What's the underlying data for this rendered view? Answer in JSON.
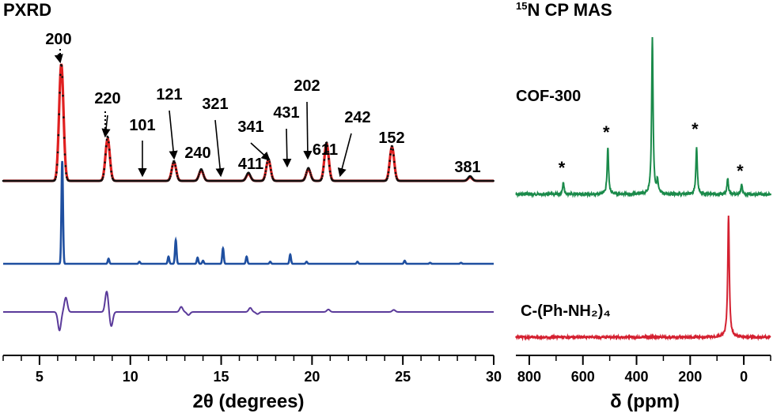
{
  "chart_data": [
    {
      "type": "line",
      "title": "PXRD",
      "xlabel": "2θ (degrees)",
      "xlim": [
        3,
        30
      ],
      "x_ticks": [
        5,
        10,
        15,
        20,
        25,
        30
      ],
      "x_tick_labels": [
        "5",
        "10",
        "15",
        "20",
        "25",
        "30"
      ],
      "y_ticks_shown": false,
      "series": [
        {
          "color": "#e02020",
          "style": "solid line",
          "peaks": [
            {
              "x": 6.2,
              "height": 1.0
            },
            {
              "x": 8.75,
              "height": 0.36
            },
            {
              "x": 12.4,
              "height": 0.16
            },
            {
              "x": 13.9,
              "height": 0.09
            },
            {
              "x": 16.5,
              "height": 0.06
            },
            {
              "x": 17.6,
              "height": 0.18
            },
            {
              "x": 19.8,
              "height": 0.1
            },
            {
              "x": 20.8,
              "height": 0.32
            },
            {
              "x": 24.4,
              "height": 0.29
            },
            {
              "x": 28.7,
              "height": 0.03
            }
          ]
        },
        {
          "color": "#111111",
          "style": "dotted markers",
          "peaks": [
            {
              "x": 6.2,
              "height": 1.0
            },
            {
              "x": 8.75,
              "height": 0.38
            },
            {
              "x": 12.4,
              "height": 0.17
            },
            {
              "x": 13.9,
              "height": 0.1
            },
            {
              "x": 16.5,
              "height": 0.07
            },
            {
              "x": 17.6,
              "height": 0.19
            },
            {
              "x": 19.8,
              "height": 0.11
            },
            {
              "x": 20.8,
              "height": 0.33
            },
            {
              "x": 24.4,
              "height": 0.3
            },
            {
              "x": 28.7,
              "height": 0.04
            }
          ]
        },
        {
          "color": "#1f4fa0",
          "style": "stick pattern",
          "peaks": [
            {
              "x": 6.25,
              "height": 1.0
            },
            {
              "x": 8.8,
              "height": 0.05
            },
            {
              "x": 10.5,
              "height": 0.02
            },
            {
              "x": 12.1,
              "height": 0.07
            },
            {
              "x": 12.5,
              "height": 0.23
            },
            {
              "x": 13.7,
              "height": 0.06
            },
            {
              "x": 14.0,
              "height": 0.03
            },
            {
              "x": 15.1,
              "height": 0.15
            },
            {
              "x": 16.4,
              "height": 0.07
            },
            {
              "x": 17.7,
              "height": 0.02
            },
            {
              "x": 18.8,
              "height": 0.09
            },
            {
              "x": 19.7,
              "height": 0.02
            },
            {
              "x": 22.5,
              "height": 0.02
            },
            {
              "x": 25.1,
              "height": 0.03
            },
            {
              "x": 26.5,
              "height": 0.01
            },
            {
              "x": 28.2,
              "height": 0.01
            }
          ]
        },
        {
          "color": "#5a3a9a",
          "style": "difference curve",
          "features": [
            {
              "x": 6.1,
              "amplitude": -0.9
            },
            {
              "x": 6.45,
              "amplitude": 0.7
            },
            {
              "x": 8.7,
              "amplitude": 1.0
            },
            {
              "x": 8.95,
              "amplitude": -0.7
            },
            {
              "x": 12.8,
              "amplitude": 0.25
            },
            {
              "x": 13.2,
              "amplitude": -0.15
            },
            {
              "x": 16.6,
              "amplitude": 0.2
            },
            {
              "x": 17.0,
              "amplitude": -0.1
            },
            {
              "x": 20.9,
              "amplitude": 0.12
            },
            {
              "x": 24.5,
              "amplitude": 0.1
            }
          ]
        }
      ],
      "annotations": [
        {
          "text": "200",
          "x": 6.2
        },
        {
          "text": "220",
          "x": 8.8
        },
        {
          "text": "101",
          "x": 10.8
        },
        {
          "text": "121",
          "x": 12.5
        },
        {
          "text": "240",
          "x": 13.9
        },
        {
          "text": "321",
          "x": 15.1
        },
        {
          "text": "411",
          "x": 16.5
        },
        {
          "text": "341",
          "x": 17.6
        },
        {
          "text": "431",
          "x": 18.7
        },
        {
          "text": "202",
          "x": 19.7
        },
        {
          "text": "611",
          "x": 20.8
        },
        {
          "text": "242",
          "x": 21.7
        },
        {
          "text": "152",
          "x": 24.4
        },
        {
          "text": "381",
          "x": 28.7
        }
      ]
    },
    {
      "type": "line",
      "title_prefix_superscript": "15",
      "title": "N CP MAS",
      "xlabel": "δ (ppm)",
      "xlim": [
        850,
        -100
      ],
      "x_ticks": [
        800,
        600,
        400,
        200,
        0
      ],
      "x_tick_labels": [
        "800",
        "600",
        "400",
        "200",
        "0"
      ],
      "y_ticks_shown": false,
      "series": [
        {
          "name": "COF-300",
          "color": "#1a8a4a",
          "peaks": [
            {
              "x": 673,
              "height": 0.08
            },
            {
              "x": 507,
              "height": 0.3
            },
            {
              "x": 341,
              "height": 1.0
            },
            {
              "x": 322,
              "height": 0.08
            },
            {
              "x": 176,
              "height": 0.3
            },
            {
              "x": 60,
              "height": 0.1
            },
            {
              "x": 8,
              "height": 0.06
            }
          ],
          "spinning_sidebands_marker": "*",
          "sideband_positions": [
            673,
            507,
            176,
            8
          ]
        },
        {
          "name": "C-(Ph-NH₂)₄",
          "color": "#d42030",
          "peaks": [
            {
              "x": 57,
              "height": 1.0
            }
          ]
        }
      ]
    }
  ]
}
